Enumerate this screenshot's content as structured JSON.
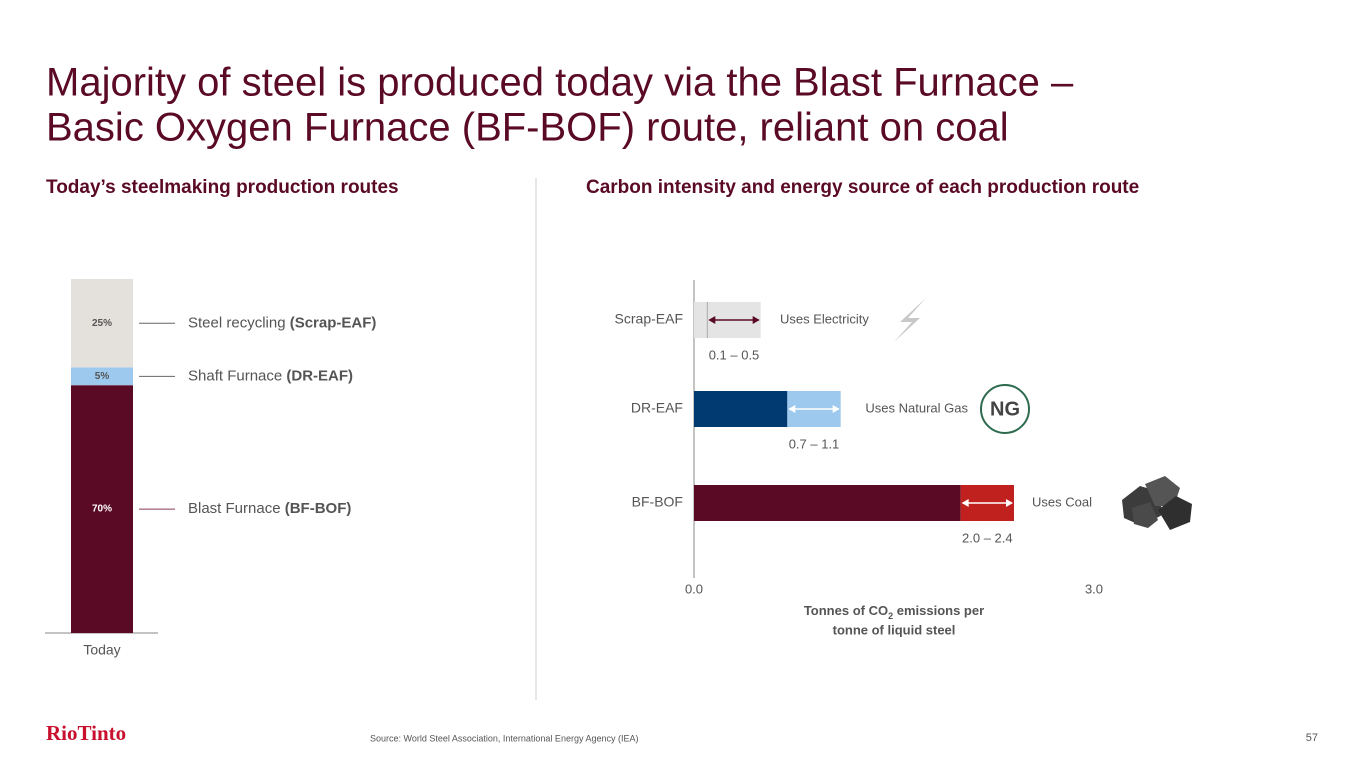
{
  "title": [
    "Majority of steel is produced today via the Blast Furnace –",
    "Basic Oxygen Furnace (BF-BOF) route, reliant on coal"
  ],
  "logo": "RioTinto",
  "source": "Source: World Steel Association, International Energy Agency (IEA)",
  "page_number": "57",
  "chart_data": [
    {
      "type": "stacked-bar",
      "title": "Today’s steelmaking production routes",
      "categories": [
        "Today"
      ],
      "ylim": [
        0,
        100
      ],
      "series": [
        {
          "name": "Blast Furnace (BF-BOF)",
          "color": "#5a0a24",
          "values": [
            70
          ],
          "value_labels": [
            "70%"
          ]
        },
        {
          "name": "Shaft Furnace (DR-EAF)",
          "color": "#9dc9ee",
          "values": [
            5
          ],
          "value_labels": [
            "5%"
          ]
        },
        {
          "name": "Steel recycling (Scrap-EAF)",
          "color": "#e4e1dc",
          "values": [
            25
          ],
          "value_labels": [
            "25%"
          ]
        }
      ]
    },
    {
      "type": "range-bar",
      "title": "Carbon intensity and energy source of each production route",
      "categories": [
        "Scrap-EAF",
        "DR-EAF",
        "BF-BOF"
      ],
      "low": [
        0.1,
        0.7,
        2.0
      ],
      "high": [
        0.5,
        1.1,
        2.4
      ],
      "value_labels": [
        "0.1 – 0.5",
        "0.7 – 1.1",
        "2.0 – 2.4"
      ],
      "base_colors": [
        "#e4e4e4",
        "#003a70",
        "#5a0a24"
      ],
      "range_colors": [
        "#e4e4e4",
        "#9dc9ee",
        "#c0201e"
      ],
      "annotations": [
        "Uses Electricity",
        "Uses Natural Gas",
        "Uses Coal"
      ],
      "icon_label": "NG",
      "xlim": [
        0,
        3
      ],
      "xticks": [
        {
          "value": 0,
          "label": "0.0"
        },
        {
          "value": 3,
          "label": "3.0"
        }
      ],
      "xlabel": [
        "Tonnes of CO",
        "2",
        " emissions per",
        "tonne of liquid steel"
      ]
    }
  ]
}
